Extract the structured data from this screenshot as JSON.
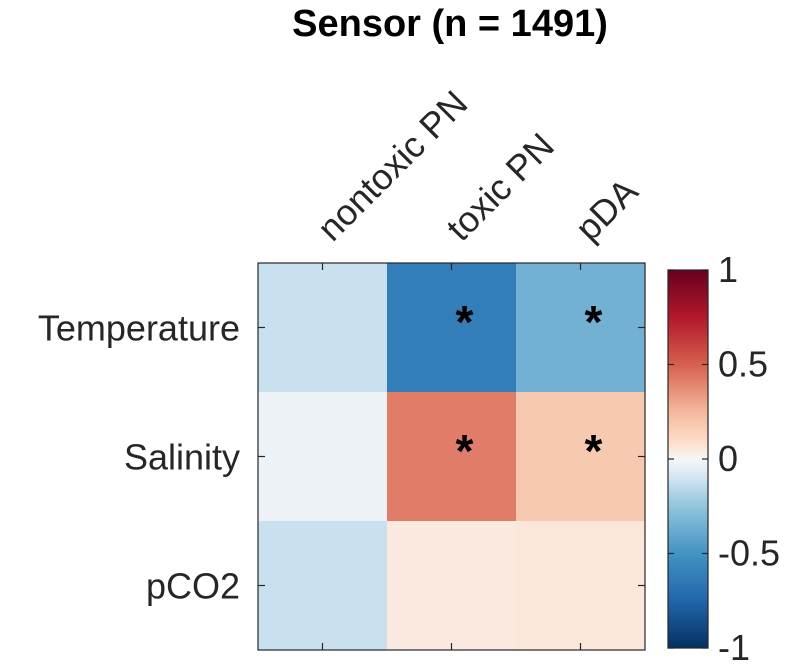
{
  "chart_data": {
    "type": "heatmap",
    "title": "Sensor (n = 1491)",
    "x_categories": [
      "nontoxic PN",
      "toxic PN",
      "pDA"
    ],
    "y_categories": [
      "Temperature",
      "Salinity",
      "pCO2"
    ],
    "values": [
      [
        -0.12,
        -0.62,
        -0.35
      ],
      [
        -0.03,
        0.42,
        0.18
      ],
      [
        -0.12,
        0.05,
        0.06
      ]
    ],
    "significant": [
      [
        false,
        true,
        true
      ],
      [
        false,
        true,
        true
      ],
      [
        false,
        false,
        false
      ]
    ],
    "significance_marker": "*",
    "colorbar": {
      "range": [
        -1,
        1
      ],
      "ticks": [
        1,
        0.5,
        0,
        -0.5,
        -1
      ],
      "tick_labels": [
        "1",
        "0.5",
        "0",
        "-0.5",
        "-1"
      ],
      "colormap": "blue-white-red diverging",
      "low_color": "#053061",
      "high_color": "#67001f"
    },
    "grid": false
  }
}
